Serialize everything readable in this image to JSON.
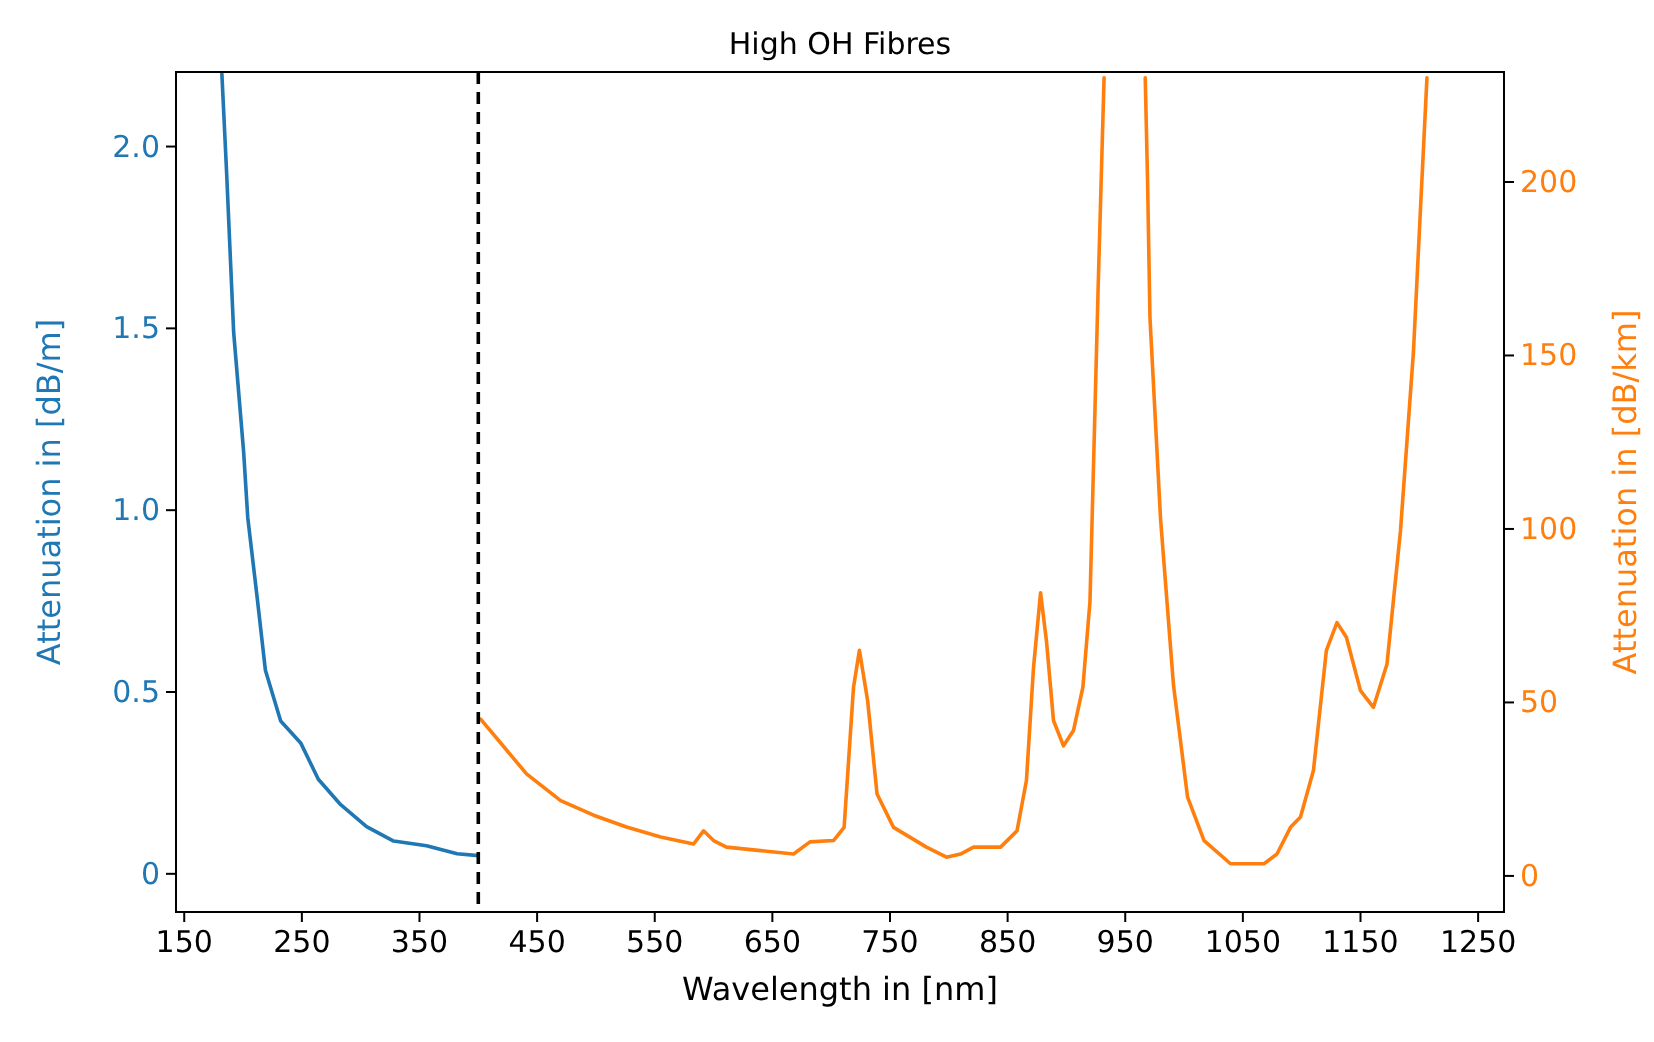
{
  "chart_data": {
    "type": "line",
    "title": "High OH Fibres",
    "xlabel": "Wavelength in [nm]",
    "ylabel": "Attenuation in [dB/m]",
    "y2label": "Attenuation in [dB/km]",
    "xlim": [
      143,
      1272
    ],
    "xticks": [
      150,
      250,
      350,
      450,
      550,
      650,
      750,
      850,
      950,
      1050,
      1150,
      1250
    ],
    "ylim": [
      -0.105,
      2.205
    ],
    "yticks": [
      0,
      0.5,
      {
        "value": 1,
        "label": "1.0"
      },
      1.5,
      {
        "value": 2,
        "label": "2.0"
      }
    ],
    "y2lim": [
      -10.4,
      231.7
    ],
    "y2ticks": [
      0,
      50,
      100,
      150,
      200
    ],
    "ref_lines": [
      {
        "axis": "x",
        "value": 400,
        "label": null,
        "color": "#000000",
        "line_style": "dashed"
      }
    ],
    "series": [
      {
        "color": "#1f77b4",
        "x": [
          182,
          186,
          192,
          200.5,
          204,
          212,
          219,
          232,
          249,
          264,
          283,
          305,
          328,
          356,
          382,
          400
        ],
        "values": [
          2.2,
          1.93,
          1.49,
          1.16,
          0.98,
          0.76,
          0.56,
          0.42,
          0.36,
          0.26,
          0.19,
          0.13,
          0.09,
          0.077,
          0.055,
          0.05
        ]
      },
      {
        "color": "#ff7f0e",
        "axis": "y2",
        "x": [
          402,
          441,
          470,
          498,
          526,
          555,
          583,
          591.5,
          600,
          611,
          640,
          668,
          682,
          702,
          711,
          719,
          724,
          731,
          739,
          753,
          781,
          798,
          810,
          821,
          844,
          858,
          866,
          872,
          878,
          883,
          889,
          897.5,
          906,
          914,
          920,
          927,
          932,
          950,
          967,
          969,
          971,
          980,
          991,
          1003,
          1017,
          1039.5,
          1068,
          1079,
          1090.5,
          1099,
          1110,
          1121,
          1130,
          1138,
          1150,
          1161,
          1172.5,
          1184,
          1195,
          1206.5
        ],
        "values": [
          45.2,
          29.4,
          21.7,
          17.5,
          14.1,
          11.2,
          9.2,
          13,
          10.2,
          8.3,
          7.3,
          6.3,
          9.8,
          10.2,
          14,
          54.4,
          65,
          50.5,
          23.6,
          14,
          8.3,
          5.4,
          6.3,
          8.3,
          8.3,
          13,
          27.5,
          60,
          81.6,
          67.8,
          44.8,
          37.5,
          41.9,
          54.4,
          79,
          170,
          230,
          null,
          230,
          200,
          161,
          103,
          55,
          22.7,
          10.2,
          3.5,
          3.5,
          6.3,
          14,
          17,
          30.4,
          65,
          73,
          68.8,
          53.4,
          48.6,
          61,
          99.5,
          151,
          230
        ]
      }
    ]
  }
}
